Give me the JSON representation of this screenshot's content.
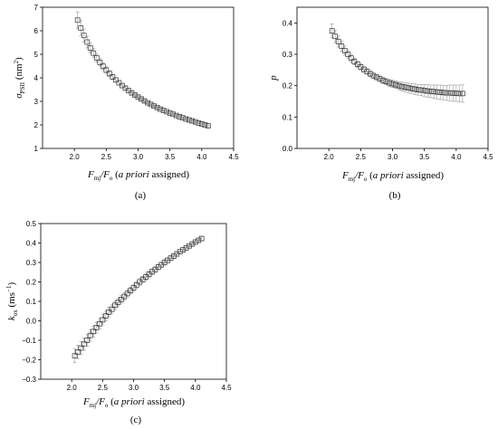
{
  "chart_data": [
    {
      "type": "scatter",
      "panel_label": "(a)",
      "x": [
        2.05,
        2.1,
        2.15,
        2.2,
        2.25,
        2.3,
        2.35,
        2.4,
        2.45,
        2.5,
        2.55,
        2.6,
        2.65,
        2.7,
        2.75,
        2.8,
        2.85,
        2.9,
        2.95,
        3.0,
        3.05,
        3.1,
        3.15,
        3.2,
        3.25,
        3.3,
        3.35,
        3.4,
        3.45,
        3.5,
        3.55,
        3.6,
        3.65,
        3.7,
        3.75,
        3.8,
        3.85,
        3.9,
        3.95,
        4.0,
        4.05,
        4.1
      ],
      "y": [
        6.45,
        6.12,
        5.8,
        5.52,
        5.27,
        5.05,
        4.85,
        4.66,
        4.49,
        4.33,
        4.18,
        4.04,
        3.91,
        3.79,
        3.67,
        3.56,
        3.46,
        3.36,
        3.27,
        3.18,
        3.1,
        3.02,
        2.94,
        2.87,
        2.8,
        2.74,
        2.67,
        2.61,
        2.56,
        2.5,
        2.45,
        2.4,
        2.35,
        2.3,
        2.25,
        2.21,
        2.17,
        2.13,
        2.08,
        2.04,
        2.0,
        1.96
      ],
      "yerr": [
        0.35,
        0.32,
        0.28,
        0.25,
        0.22,
        0.2,
        0.18,
        0.16,
        0.15,
        0.14,
        0.12,
        0.11,
        0.1,
        0.1,
        0.09,
        0.08,
        0.08,
        0.07,
        0.07,
        0.06,
        0.06,
        0.06,
        0.05,
        0.05,
        0.05,
        0.05,
        0.05,
        0.04,
        0.04,
        0.04,
        0.04,
        0.04,
        0.04,
        0.04,
        0.04,
        0.04,
        0.04,
        0.04,
        0.04,
        0.04,
        0.04,
        0.04
      ],
      "xlim": [
        1.5,
        4.5
      ],
      "ylim": [
        1,
        7
      ],
      "xticks": [
        "2.0",
        "2.5",
        "3.0",
        "3.5",
        "4.0",
        "4.5"
      ],
      "yticks": [
        "1",
        "2",
        "3",
        "4",
        "5",
        "6",
        "7"
      ],
      "xlabel": "F_mj/F_o (a priori assigned)",
      "ylabel": "σ_PSII (nm²)",
      "marker": "open-square",
      "grid": false
    },
    {
      "type": "scatter",
      "panel_label": "(b)",
      "x": [
        2.05,
        2.1,
        2.15,
        2.2,
        2.25,
        2.3,
        2.35,
        2.4,
        2.45,
        2.5,
        2.55,
        2.6,
        2.65,
        2.7,
        2.75,
        2.8,
        2.85,
        2.9,
        2.95,
        3.0,
        3.05,
        3.1,
        3.15,
        3.2,
        3.25,
        3.3,
        3.35,
        3.4,
        3.45,
        3.5,
        3.55,
        3.6,
        3.65,
        3.7,
        3.75,
        3.8,
        3.85,
        3.9,
        3.95,
        4.0,
        4.05,
        4.1
      ],
      "y": [
        0.375,
        0.357,
        0.341,
        0.326,
        0.312,
        0.3,
        0.288,
        0.277,
        0.268,
        0.26,
        0.252,
        0.245,
        0.238,
        0.232,
        0.227,
        0.222,
        0.217,
        0.213,
        0.209,
        0.206,
        0.203,
        0.2,
        0.197,
        0.195,
        0.193,
        0.191,
        0.189,
        0.187,
        0.186,
        0.185,
        0.183,
        0.182,
        0.181,
        0.18,
        0.179,
        0.178,
        0.177,
        0.177,
        0.176,
        0.176,
        0.175,
        0.175
      ],
      "yerr": [
        0.022,
        0.02,
        0.018,
        0.016,
        0.015,
        0.013,
        0.012,
        0.011,
        0.01,
        0.01,
        0.009,
        0.009,
        0.009,
        0.009,
        0.009,
        0.009,
        0.01,
        0.01,
        0.011,
        0.012,
        0.012,
        0.013,
        0.014,
        0.014,
        0.015,
        0.016,
        0.017,
        0.017,
        0.018,
        0.019,
        0.02,
        0.02,
        0.021,
        0.022,
        0.023,
        0.023,
        0.024,
        0.025,
        0.026,
        0.026,
        0.027,
        0.028
      ],
      "xlim": [
        1.5,
        4.5
      ],
      "ylim": [
        0.0,
        0.45
      ],
      "xticks": [
        "2.0",
        "2.5",
        "3.0",
        "3.5",
        "4.0",
        "4.5"
      ],
      "yticks": [
        "0.0",
        "0.1",
        "0.2",
        "0.3",
        "0.4"
      ],
      "xlabel": "F_mj/F_o (a priori assigned)",
      "ylabel": "p",
      "marker": "open-square",
      "grid": false
    },
    {
      "type": "scatter",
      "panel_label": "(c)",
      "x": [
        2.05,
        2.1,
        2.15,
        2.2,
        2.25,
        2.3,
        2.35,
        2.4,
        2.45,
        2.5,
        2.55,
        2.6,
        2.65,
        2.7,
        2.75,
        2.8,
        2.85,
        2.9,
        2.95,
        3.0,
        3.05,
        3.1,
        3.15,
        3.2,
        3.25,
        3.3,
        3.35,
        3.4,
        3.45,
        3.5,
        3.55,
        3.6,
        3.65,
        3.7,
        3.75,
        3.8,
        3.85,
        3.9,
        3.95,
        4.0,
        4.05,
        4.1
      ],
      "y": [
        -0.18,
        -0.16,
        -0.14,
        -0.12,
        -0.1,
        -0.075,
        -0.055,
        -0.035,
        -0.015,
        0.005,
        0.025,
        0.045,
        0.06,
        0.08,
        0.095,
        0.11,
        0.125,
        0.14,
        0.155,
        0.17,
        0.185,
        0.2,
        0.213,
        0.226,
        0.239,
        0.252,
        0.264,
        0.276,
        0.288,
        0.3,
        0.311,
        0.322,
        0.333,
        0.344,
        0.355,
        0.365,
        0.375,
        0.385,
        0.395,
        0.405,
        0.414,
        0.423
      ],
      "yerr": [
        0.035,
        0.034,
        0.033,
        0.032,
        0.031,
        0.03,
        0.029,
        0.028,
        0.027,
        0.026,
        0.025,
        0.024,
        0.023,
        0.022,
        0.021,
        0.02,
        0.02,
        0.019,
        0.018,
        0.018,
        0.017,
        0.017,
        0.016,
        0.016,
        0.015,
        0.015,
        0.015,
        0.014,
        0.014,
        0.014,
        0.013,
        0.013,
        0.013,
        0.012,
        0.012,
        0.012,
        0.012,
        0.011,
        0.011,
        0.011,
        0.011,
        0.011
      ],
      "xlim": [
        1.5,
        4.5
      ],
      "ylim": [
        -0.3,
        0.5
      ],
      "xticks": [
        "2.0",
        "2.5",
        "3.0",
        "3.5",
        "4.0",
        "4.5"
      ],
      "yticks": [
        "−0.3",
        "−0.2",
        "−0.1",
        "0.0",
        "0.1",
        "0.2",
        "0.3",
        "0.4",
        "0.5"
      ],
      "xlabel": "F_mj/F_o (a priori assigned)",
      "ylabel": "k_ox (ms⁻¹)",
      "marker": "open-square",
      "grid": false
    }
  ],
  "text": {
    "xlabel_main": "F",
    "xlabel_sub1": "mj",
    "xlabel_sep": "/F",
    "xlabel_sub2": "o",
    "xlabel_paren_open": " (",
    "xlabel_italic": "a priori",
    "xlabel_rest": " assigned)",
    "a_ylabel_sym": "σ",
    "a_ylabel_sub": "PSII",
    "a_ylabel_unit_pre": " (nm",
    "a_ylabel_unit_sup": "2",
    "a_ylabel_unit_post": ")",
    "b_ylabel": "p",
    "c_ylabel_sym": "k",
    "c_ylabel_sub": "ox",
    "c_ylabel_unit_pre": " (ms",
    "c_ylabel_unit_sup": "−1",
    "c_ylabel_unit_post": ")",
    "label_a": "(a)",
    "label_b": "(b)",
    "label_c": "(c)"
  },
  "colors": {
    "marker_stroke": "#333333",
    "errorbar": "#9a9a9a",
    "axis": "#000000"
  }
}
